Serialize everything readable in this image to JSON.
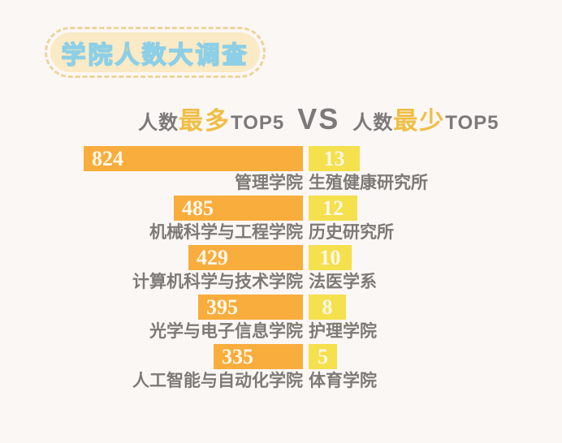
{
  "page": {
    "background_color": "#fbf7f5"
  },
  "badge": {
    "title": "学院人数大调查",
    "fill_color": "#faeac5",
    "border_color": "#edd49b",
    "text_fill_color": "#f6db4e",
    "text_outline_color": "#8ccfe6"
  },
  "header": {
    "left_prefix": "人数",
    "left_highlight": "最多",
    "left_suffix": "TOP5",
    "vs": "VS",
    "right_prefix": "人数",
    "right_highlight": "最少",
    "right_suffix": "TOP5",
    "gray_color": "#7b7a78",
    "gold_color": "#efbe45"
  },
  "chart_data": {
    "type": "bar",
    "orientation": "horizontal",
    "title": "学院人数大调查",
    "subtitle": "人数最多TOP5 VS 人数最少TOP5",
    "grid": false,
    "legend": false,
    "value_labels": "inside-bar",
    "series": [
      {
        "name": "人数最多TOP5",
        "color": "#f8ad3d",
        "alignment": "right-aligned-bars",
        "items": [
          {
            "label": "管理学院",
            "value": 824
          },
          {
            "label": "机械科学与工程学院",
            "value": 485
          },
          {
            "label": "计算机科学与技术学院",
            "value": 429
          },
          {
            "label": "光学与电子信息学院",
            "value": 395
          },
          {
            "label": "人工智能与自动化学院",
            "value": 335
          }
        ]
      },
      {
        "name": "人数最少TOP5",
        "color": "#f5e04d",
        "alignment": "left-aligned-bars",
        "items": [
          {
            "label": "生殖健康研究所",
            "value": 13
          },
          {
            "label": "历史研究所",
            "value": 12
          },
          {
            "label": "法医学系",
            "value": 10
          },
          {
            "label": "护理学院",
            "value": 8
          },
          {
            "label": "体育学院",
            "value": 5
          }
        ]
      }
    ],
    "value_text_color": "#fdf7e9",
    "label_text_color": "#7d7a75"
  }
}
